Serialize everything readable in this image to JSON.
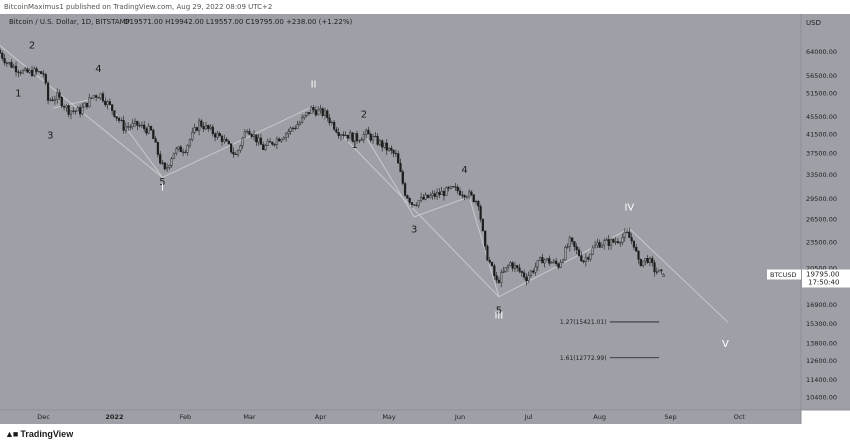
{
  "header": {
    "published_line": "BitcoinMaximus1 published on TradingView.com, Aug 29, 2022 08:09 UTC+2"
  },
  "footer": {
    "logo_text": "TradingView",
    "logo_icon": "tradingview-logo-icon"
  },
  "colors": {
    "background": "#9da0a6",
    "axis_background": "#9da0a6",
    "candle": "#1c1c1c",
    "wave_line": "#c7c9cd",
    "label_dark": "#1e1e1e",
    "label_light": "#ffffff",
    "price_tag_bg": "#ffffff"
  },
  "chart_data": {
    "type": "candlestick",
    "title": "Bitcoin / U.S. Dollar, 1D, BITSTAMP",
    "ohlc_line": "O19571.00 H19942.00 L19557.00 C19795.00 +238.00 (+1.22%)",
    "currency_label": "USD",
    "price_tag": {
      "symbol": "BTCUSD",
      "price": "19795.00",
      "countdown": "17:50:40",
      "value": 19795
    },
    "y_axis": {
      "scale": "log",
      "range": [
        9700,
        78000
      ],
      "ticks": [
        {
          "label": "64000.00",
          "value": 64000
        },
        {
          "label": "56500.00",
          "value": 56500
        },
        {
          "label": "51500.00",
          "value": 51500
        },
        {
          "label": "45500.00",
          "value": 45500
        },
        {
          "label": "41500.00",
          "value": 41500
        },
        {
          "label": "37500.00",
          "value": 37500
        },
        {
          "label": "33500.00",
          "value": 33500
        },
        {
          "label": "29500.00",
          "value": 29500
        },
        {
          "label": "26500.00",
          "value": 26500
        },
        {
          "label": "23500.00",
          "value": 23500
        },
        {
          "label": "20500.00",
          "value": 20500
        },
        {
          "label": "16900.00",
          "value": 16900
        },
        {
          "label": "15300.00",
          "value": 15300
        },
        {
          "label": "13800.00",
          "value": 13800
        },
        {
          "label": "12600.00",
          "value": 12600
        },
        {
          "label": "11400.00",
          "value": 11400
        },
        {
          "label": "10400.00",
          "value": 10400
        }
      ]
    },
    "x_axis": {
      "range": [
        "2021-11-12",
        "2022-10-28"
      ],
      "ticks": [
        {
          "label": "Dec",
          "date": "2021-12-01"
        },
        {
          "label": "2022",
          "date": "2022-01-01"
        },
        {
          "label": "Feb",
          "date": "2022-02-01"
        },
        {
          "label": "Mar",
          "date": "2022-03-01"
        },
        {
          "label": "Apr",
          "date": "2022-04-01"
        },
        {
          "label": "May",
          "date": "2022-05-01"
        },
        {
          "label": "Jun",
          "date": "2022-06-01"
        },
        {
          "label": "Jul",
          "date": "2022-07-01"
        },
        {
          "label": "Aug",
          "date": "2022-08-01"
        },
        {
          "label": "Sep",
          "date": "2022-09-01"
        },
        {
          "label": "Oct",
          "date": "2022-10-01"
        }
      ]
    },
    "price_path": [
      [
        "2021-11-12",
        64500
      ],
      [
        "2021-11-16",
        60500
      ],
      [
        "2021-11-20",
        58700
      ],
      [
        "2021-11-24",
        57200
      ],
      [
        "2021-11-28",
        57500
      ],
      [
        "2021-12-02",
        57000
      ],
      [
        "2021-12-04",
        49500
      ],
      [
        "2021-12-08",
        50500
      ],
      [
        "2021-12-13",
        47000
      ],
      [
        "2021-12-18",
        46800
      ],
      [
        "2021-12-24",
        50800
      ],
      [
        "2021-12-27",
        51000
      ],
      [
        "2022-01-01",
        47200
      ],
      [
        "2022-01-06",
        43000
      ],
      [
        "2022-01-12",
        43500
      ],
      [
        "2022-01-18",
        42000
      ],
      [
        "2022-01-22",
        36000
      ],
      [
        "2022-01-24",
        34000
      ],
      [
        "2022-01-28",
        37800
      ],
      [
        "2022-02-02",
        38500
      ],
      [
        "2022-02-08",
        44000
      ],
      [
        "2022-02-12",
        42500
      ],
      [
        "2022-02-18",
        40500
      ],
      [
        "2022-02-24",
        37000
      ],
      [
        "2022-03-01",
        43000
      ],
      [
        "2022-03-08",
        38500
      ],
      [
        "2022-03-16",
        41000
      ],
      [
        "2022-03-24",
        44000
      ],
      [
        "2022-03-29",
        47300
      ],
      [
        "2022-04-04",
        46000
      ],
      [
        "2022-04-10",
        42000
      ],
      [
        "2022-04-18",
        40500
      ],
      [
        "2022-04-22",
        41500
      ],
      [
        "2022-04-28",
        39500
      ],
      [
        "2022-05-05",
        37000
      ],
      [
        "2022-05-09",
        30500
      ],
      [
        "2022-05-12",
        28800
      ],
      [
        "2022-05-20",
        29800
      ],
      [
        "2022-05-30",
        31000
      ],
      [
        "2022-06-05",
        30300
      ],
      [
        "2022-06-10",
        29000
      ],
      [
        "2022-06-13",
        22500
      ],
      [
        "2022-06-18",
        19000
      ],
      [
        "2022-06-24",
        21000
      ],
      [
        "2022-07-01",
        19500
      ],
      [
        "2022-07-08",
        21500
      ],
      [
        "2022-07-15",
        20800
      ],
      [
        "2022-07-20",
        23500
      ],
      [
        "2022-07-26",
        21300
      ],
      [
        "2022-08-01",
        23300
      ],
      [
        "2022-08-08",
        23500
      ],
      [
        "2022-08-14",
        24400
      ],
      [
        "2022-08-17",
        23300
      ],
      [
        "2022-08-19",
        21000
      ],
      [
        "2022-08-23",
        21500
      ],
      [
        "2022-08-26",
        20300
      ],
      [
        "2022-08-29",
        19795
      ]
    ],
    "last_candle": {
      "open": 19571,
      "high": 19942,
      "low": 19557,
      "close": 19795,
      "date": "2022-08-29"
    },
    "wave_lines": [
      {
        "name": "primary-wave-path",
        "points": [
          [
            "2021-11-12",
            66000
          ],
          [
            "2022-01-22",
            33000
          ],
          [
            "2022-03-29",
            48000
          ],
          [
            "2022-06-18",
            17600
          ],
          [
            "2022-08-14",
            25200
          ],
          [
            "2022-09-26",
            15400
          ]
        ]
      },
      {
        "name": "minor-wave-path",
        "points": [
          [
            "2021-12-05",
            47500
          ],
          [
            "2021-12-27",
            50500
          ],
          [
            "2022-01-22",
            33000
          ]
        ]
      },
      {
        "name": "minor-wave-path-2",
        "points": [
          [
            "2022-04-21",
            40800
          ],
          [
            "2022-05-12",
            26800
          ],
          [
            "2022-06-05",
            29800
          ],
          [
            "2022-06-18",
            17600
          ]
        ]
      }
    ],
    "wave_labels": [
      {
        "text": "2",
        "date": "2021-11-26",
        "price": 65000,
        "color": "dark"
      },
      {
        "text": "1",
        "date": "2021-11-20",
        "price": 50500,
        "color": "dark"
      },
      {
        "text": "3",
        "date": "2021-12-04",
        "price": 40500,
        "color": "dark"
      },
      {
        "text": "4",
        "date": "2021-12-25",
        "price": 57500,
        "color": "dark"
      },
      {
        "text": "5",
        "date": "2022-01-22",
        "price": 31700,
        "color": "dark"
      },
      {
        "text": "I",
        "date": "2022-01-22",
        "price": 30800,
        "color": "light"
      },
      {
        "text": "II",
        "date": "2022-03-29",
        "price": 53000,
        "color": "light"
      },
      {
        "text": "2",
        "date": "2022-04-20",
        "price": 45200,
        "color": "dark"
      },
      {
        "text": "1",
        "date": "2022-04-16",
        "price": 38500,
        "color": "dark"
      },
      {
        "text": "3",
        "date": "2022-05-12",
        "price": 24700,
        "color": "dark"
      },
      {
        "text": "4",
        "date": "2022-06-03",
        "price": 33800,
        "color": "dark"
      },
      {
        "text": "5",
        "date": "2022-06-18",
        "price": 16100,
        "color": "dark"
      },
      {
        "text": "III",
        "date": "2022-06-18",
        "price": 15700,
        "color": "light"
      },
      {
        "text": "IV",
        "date": "2022-08-14",
        "price": 27700,
        "color": "light"
      },
      {
        "text": "V",
        "date": "2022-09-25",
        "price": 13500,
        "color": "light"
      }
    ],
    "fib_levels": [
      {
        "label": "1.27(15421.01)",
        "value": 15421.01,
        "from": "2022-08-02",
        "to": "2022-08-20"
      },
      {
        "label": "1.61(12772.99)",
        "value": 12772.99,
        "from": "2022-08-02",
        "to": "2022-08-20"
      }
    ]
  }
}
